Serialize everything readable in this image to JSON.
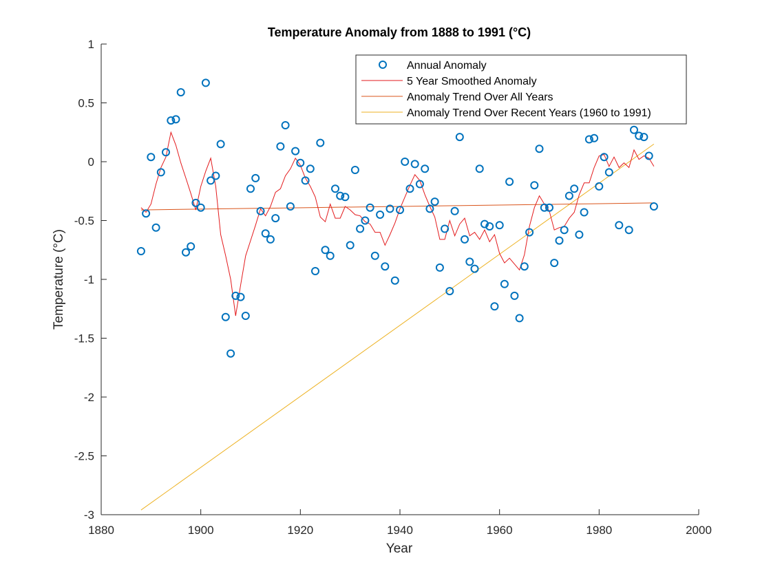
{
  "chart_data": {
    "type": "line",
    "title": "Temperature Anomaly from 1888 to 1991 (°C)",
    "xlabel": "Year",
    "ylabel": "Temperature (°C)",
    "xlim": [
      1880,
      2000
    ],
    "ylim": [
      -3,
      1
    ],
    "xticks": [
      1880,
      1900,
      1920,
      1940,
      1960,
      1980,
      2000
    ],
    "yticks": [
      -3,
      -2.5,
      -2,
      -1.5,
      -1,
      -0.5,
      0,
      0.5,
      1
    ],
    "ytick_labels": [
      "-3",
      "-2.5",
      "-2",
      "-1.5",
      "-1",
      "-0.5",
      "0",
      "0.5",
      "1"
    ],
    "grid": false,
    "legend_position": "top-right",
    "series": [
      {
        "name": "Annual Anomaly",
        "style": "markers",
        "marker": "circle",
        "color": "#0072BD",
        "x": [
          1888,
          1889,
          1890,
          1891,
          1892,
          1893,
          1894,
          1895,
          1896,
          1897,
          1898,
          1899,
          1900,
          1901,
          1902,
          1903,
          1904,
          1905,
          1906,
          1907,
          1908,
          1909,
          1910,
          1911,
          1912,
          1913,
          1914,
          1915,
          1916,
          1917,
          1918,
          1919,
          1920,
          1921,
          1922,
          1923,
          1924,
          1925,
          1926,
          1927,
          1928,
          1929,
          1930,
          1931,
          1932,
          1933,
          1934,
          1935,
          1936,
          1937,
          1938,
          1939,
          1940,
          1941,
          1942,
          1943,
          1944,
          1945,
          1946,
          1947,
          1948,
          1949,
          1950,
          1951,
          1952,
          1953,
          1954,
          1955,
          1956,
          1957,
          1958,
          1959,
          1960,
          1961,
          1962,
          1963,
          1964,
          1965,
          1966,
          1967,
          1968,
          1969,
          1970,
          1971,
          1972,
          1973,
          1974,
          1975,
          1976,
          1977,
          1978,
          1979,
          1980,
          1981,
          1982,
          1983,
          1984,
          1985,
          1986,
          1987,
          1988,
          1989,
          1990,
          1991
        ],
        "y": [
          -0.76,
          -0.44,
          0.04,
          -0.56,
          -0.09,
          0.08,
          0.35,
          0.36,
          0.59,
          -0.77,
          -0.72,
          -0.35,
          -0.39,
          0.67,
          -0.16,
          -0.12,
          0.15,
          -1.32,
          -1.63,
          -1.14,
          -1.15,
          -1.31,
          -0.23,
          -0.14,
          -0.42,
          -0.61,
          -0.66,
          -0.48,
          0.13,
          0.31,
          -0.38,
          0.09,
          -0.01,
          -0.16,
          -0.06,
          -0.93,
          0.16,
          -0.75,
          -0.8,
          -0.23,
          -0.29,
          -0.3,
          -0.71,
          -0.07,
          -0.57,
          -0.5,
          -0.39,
          -0.8,
          -0.45,
          -0.89,
          -0.4,
          -1.01,
          -0.41,
          0.0,
          -0.23,
          -0.02,
          -0.19,
          -0.06,
          -0.4,
          -0.34,
          -0.9,
          -0.57,
          -1.1,
          -0.42,
          0.21,
          -0.66,
          -0.85,
          -0.91,
          -0.06,
          -0.53,
          -0.55,
          -1.23,
          -0.54,
          -1.04,
          -0.17,
          -1.14,
          -1.33,
          -0.89,
          -0.6,
          -0.2,
          0.11,
          -0.39,
          -0.39,
          -0.86,
          -0.67,
          -0.58,
          -0.29,
          -0.23,
          -0.62,
          -0.43,
          0.19,
          0.2,
          -0.21,
          0.04,
          -0.09,
          null,
          -0.54,
          null,
          -0.58,
          0.27,
          0.22,
          0.21,
          0.05,
          -0.38
        ]
      },
      {
        "name": "5 Year Smoothed Anomaly",
        "style": "line",
        "color": "#E31A1C",
        "x": [
          1888,
          1889,
          1890,
          1891,
          1892,
          1893,
          1894,
          1895,
          1896,
          1897,
          1898,
          1899,
          1900,
          1901,
          1902,
          1903,
          1904,
          1905,
          1906,
          1907,
          1908,
          1909,
          1910,
          1911,
          1912,
          1913,
          1914,
          1915,
          1916,
          1917,
          1918,
          1919,
          1920,
          1921,
          1922,
          1923,
          1924,
          1925,
          1926,
          1927,
          1928,
          1929,
          1930,
          1931,
          1932,
          1933,
          1934,
          1935,
          1936,
          1937,
          1938,
          1939,
          1940,
          1941,
          1942,
          1943,
          1944,
          1945,
          1946,
          1947,
          1948,
          1949,
          1950,
          1951,
          1952,
          1953,
          1954,
          1955,
          1956,
          1957,
          1958,
          1959,
          1960,
          1961,
          1962,
          1963,
          1964,
          1965,
          1966,
          1967,
          1968,
          1969,
          1970,
          1971,
          1972,
          1973,
          1974,
          1975,
          1976,
          1977,
          1978,
          1979,
          1980,
          1981,
          1982,
          1983,
          1984,
          1985,
          1986,
          1987,
          1988,
          1989,
          1990,
          1991
        ],
        "y": [
          -0.39,
          -0.43,
          -0.36,
          -0.19,
          -0.05,
          0.04,
          0.25,
          0.14,
          -0.01,
          -0.14,
          -0.27,
          -0.41,
          -0.21,
          -0.08,
          0.03,
          -0.21,
          -0.62,
          -0.8,
          -1.0,
          -1.31,
          -1.05,
          -0.8,
          -0.67,
          -0.54,
          -0.4,
          -0.46,
          -0.38,
          -0.26,
          -0.23,
          -0.12,
          -0.06,
          0.03,
          -0.03,
          -0.14,
          -0.21,
          -0.3,
          -0.47,
          -0.51,
          -0.36,
          -0.48,
          -0.48,
          -0.38,
          -0.41,
          -0.45,
          -0.46,
          -0.51,
          -0.53,
          -0.6,
          -0.6,
          -0.71,
          -0.62,
          -0.52,
          -0.4,
          -0.3,
          -0.2,
          -0.11,
          -0.16,
          -0.28,
          -0.38,
          -0.47,
          -0.66,
          -0.66,
          -0.5,
          -0.63,
          -0.53,
          -0.48,
          -0.63,
          -0.6,
          -0.66,
          -0.58,
          -0.68,
          -0.62,
          -0.78,
          -0.86,
          -0.82,
          -0.87,
          -0.92,
          -0.79,
          -0.55,
          -0.39,
          -0.29,
          -0.36,
          -0.42,
          -0.58,
          -0.56,
          -0.55,
          -0.48,
          -0.43,
          -0.28,
          -0.18,
          -0.18,
          -0.05,
          0.05,
          0.06,
          -0.04,
          0.04,
          -0.05,
          -0.01,
          -0.05,
          0.1,
          0.02,
          0.05,
          0.03,
          -0.04
        ]
      },
      {
        "name": "Anomaly Trend Over All Years",
        "style": "line",
        "color": "#D95319",
        "x": [
          1888,
          1991
        ],
        "y": [
          -0.41,
          -0.35
        ]
      },
      {
        "name": "Anomaly Trend Over Recent Years (1960 to 1991)",
        "style": "line",
        "color": "#EDB120",
        "x": [
          1888,
          1991
        ],
        "y": [
          -2.96,
          0.15
        ]
      }
    ]
  }
}
